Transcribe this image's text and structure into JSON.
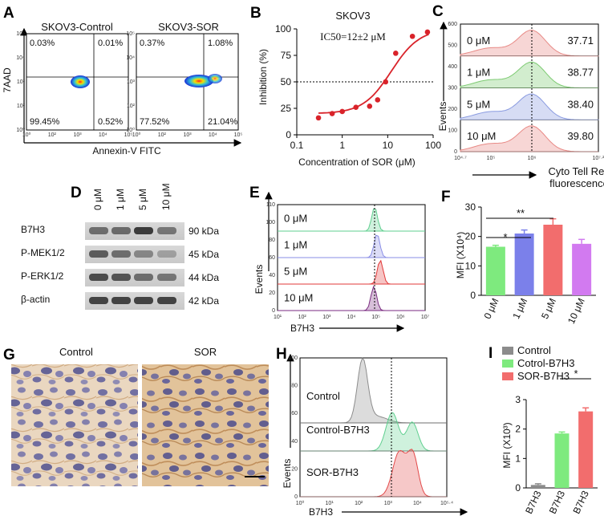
{
  "panels": {
    "A": {
      "letter": "A",
      "left_title": "SKOV3-Control",
      "right_title": "SKOV3-SOR",
      "ylabel": "7AAD",
      "xlabel": "Annexin-V FITC",
      "ticks": [
        "10⁰",
        "10²",
        "10³",
        "10⁴",
        "10⁵"
      ],
      "left_quadrants": {
        "ul": "0.03%",
        "ur": "0.01%",
        "ll": "99.45%",
        "lr": "0.52%"
      },
      "right_quadrants": {
        "ul": "0.37%",
        "ur": "1.08%",
        "ll": "77.52%",
        "lr": "21.04%"
      }
    },
    "B": {
      "letter": "B",
      "title": "SKOV3",
      "ic50": "IC50=12±2 μM",
      "ylabel": "Inhibition (%)",
      "xlabel": "Concentration of SOR (μM)",
      "chart_data": {
        "type": "scatter",
        "x": [
          0.3,
          0.6,
          1,
          2,
          4,
          6,
          9,
          15,
          35,
          75
        ],
        "y": [
          16,
          20,
          22,
          26,
          27,
          33,
          50,
          77,
          93,
          97
        ],
        "xlim": [
          0.1,
          100
        ],
        "ylim": [
          0,
          100
        ],
        "threshold": 50,
        "xticks": [
          "0.1",
          "1",
          "10",
          "100"
        ],
        "yticks": [
          "0",
          "25",
          "50",
          "75",
          "100"
        ]
      }
    },
    "C": {
      "letter": "C",
      "ylabel": "Events",
      "xlabel_line1": "Cyto Tell Red",
      "xlabel_line2": "fluorescence",
      "yticks": [
        "0",
        "100",
        "200",
        "300",
        "400",
        "500",
        "600"
      ],
      "xticks": [
        "10⁴·⁷",
        "10⁵",
        "10⁶",
        "10⁷·²"
      ],
      "rows": [
        {
          "label": "0 μM",
          "value": "37.71",
          "color": "#e88a86"
        },
        {
          "label": "1 μM",
          "value": "38.77",
          "color": "#7ecb73"
        },
        {
          "label": "5 μM",
          "value": "38.40",
          "color": "#8a9be0"
        },
        {
          "label": "10 μM",
          "value": "39.80",
          "color": "#e88a86"
        }
      ]
    },
    "D": {
      "letter": "D",
      "lanes": [
        "0 μM",
        "1 μM",
        "5 μM",
        "10 μM"
      ],
      "rows": [
        {
          "name": "B7H3",
          "kda": "90 kDa"
        },
        {
          "name": "P-MEK1/2",
          "kda": "45 kDa"
        },
        {
          "name": "P-ERK1/2",
          "kda": "44 kDa"
        },
        {
          "name": "β-actin",
          "kda": "42 kDa"
        }
      ]
    },
    "E": {
      "letter": "E",
      "ylabel": "Events",
      "xlabel": "B7H3",
      "yticks": [
        "0",
        "20",
        "40",
        "60",
        "80",
        "100",
        "110"
      ],
      "xticks": [
        "10¹",
        "10²",
        "10³",
        "10⁴",
        "10⁵",
        "10⁶",
        "10⁷"
      ],
      "rows": [
        {
          "label": "0 μM",
          "color": "#5fcf8f"
        },
        {
          "label": "1 μM",
          "color": "#8a8ee6"
        },
        {
          "label": "5 μM",
          "color": "#e23a3a"
        },
        {
          "label": "10 μM",
          "color": "#7a2b80"
        }
      ]
    },
    "F": {
      "letter": "F",
      "ylabel": "MFI (X10⁴)",
      "sig1": "*",
      "sig2": "**",
      "chart_data": {
        "type": "bar",
        "categories": [
          "0 μM",
          "1 μM",
          "5 μM",
          "10 μM"
        ],
        "values": [
          16.5,
          21,
          24,
          17.5
        ],
        "errors": [
          0.5,
          1.2,
          2,
          1.5
        ],
        "colors": [
          "#7eea7e",
          "#7b80ea",
          "#f26d6d",
          "#d27af0"
        ],
        "ylim": [
          0,
          30
        ],
        "yticks": [
          "0",
          "10",
          "20",
          "30"
        ]
      }
    },
    "G": {
      "letter": "G",
      "left_title": "Control",
      "right_title": "SOR"
    },
    "H": {
      "letter": "H",
      "ylabel": "Events",
      "xlabel": "B7H3",
      "yticks": [
        "0",
        "20",
        "40",
        "60",
        "80",
        "100"
      ],
      "xticks": [
        "10⁰",
        "10¹",
        "10²",
        "10³",
        "10⁴",
        "10⁵·⁴"
      ],
      "rows": [
        {
          "label": "Control",
          "color": "#8c8c8c"
        },
        {
          "label": "Control-B7H3",
          "color": "#5fcf8f"
        },
        {
          "label": "SOR-B7H3",
          "color": "#e24a4a"
        }
      ]
    },
    "I": {
      "letter": "I",
      "ylabel": "MFI (X10³)",
      "sig": "*",
      "legend": [
        {
          "label": "Control",
          "color": "#8c8c8c"
        },
        {
          "label": "Cotrol-B7H3",
          "color": "#7eea7e"
        },
        {
          "label": "SOR-B7H3",
          "color": "#f26d6d"
        }
      ],
      "chart_data": {
        "type": "bar",
        "categories": [
          "B7H3",
          "B7H3",
          "B7H3"
        ],
        "values": [
          0.1,
          1.85,
          2.6
        ],
        "errors": [
          0.04,
          0.05,
          0.12
        ],
        "colors": [
          "#8c8c8c",
          "#7eea7e",
          "#f26d6d"
        ],
        "ylim": [
          0,
          3
        ],
        "yticks": [
          "0",
          "1",
          "2",
          "3"
        ]
      }
    }
  }
}
